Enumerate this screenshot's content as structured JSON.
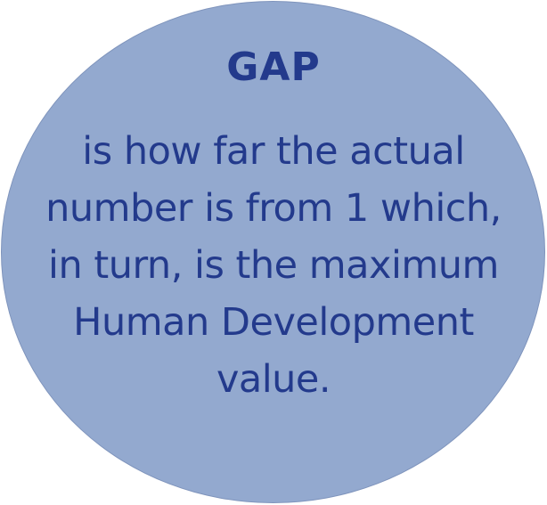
{
  "colors": {
    "circle_fill": "#93A9CF",
    "circle_border": "#7F94BC",
    "text": "#233A8C"
  },
  "bubble": {
    "title": "GAP",
    "lines": [
      "is how far the actual",
      "number is from 1 which,",
      "in turn, is the maximum",
      "Human Development",
      "value."
    ]
  }
}
